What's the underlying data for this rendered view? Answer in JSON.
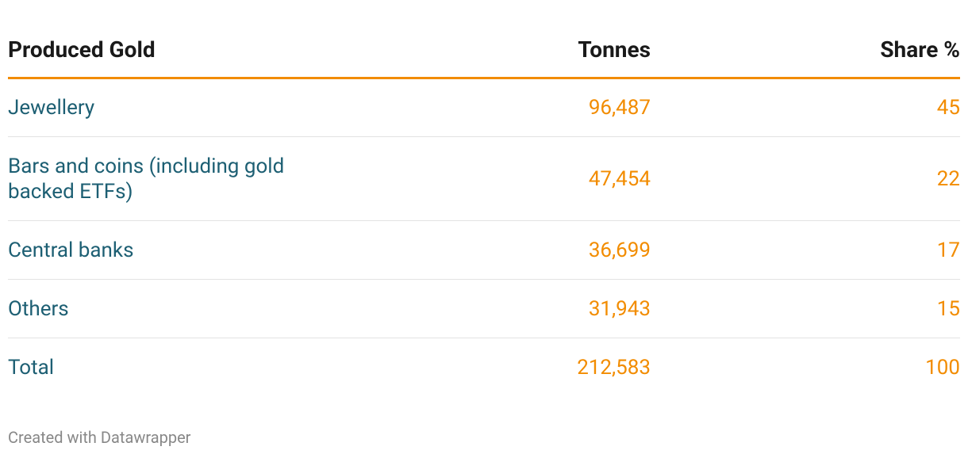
{
  "table": {
    "header": [
      "Produced Gold",
      "Tonnes",
      "Share %"
    ],
    "rows": [
      [
        "Jewellery",
        "96,487",
        "45"
      ],
      [
        "Bars and coins (including gold backed ETFs)",
        "47,454",
        "22"
      ],
      [
        "Central banks",
        "36,699",
        "17"
      ],
      [
        "Others",
        "31,943",
        "15"
      ],
      [
        "Total",
        "212,583",
        "100"
      ]
    ]
  },
  "footer": "Created with Datawrapper"
}
